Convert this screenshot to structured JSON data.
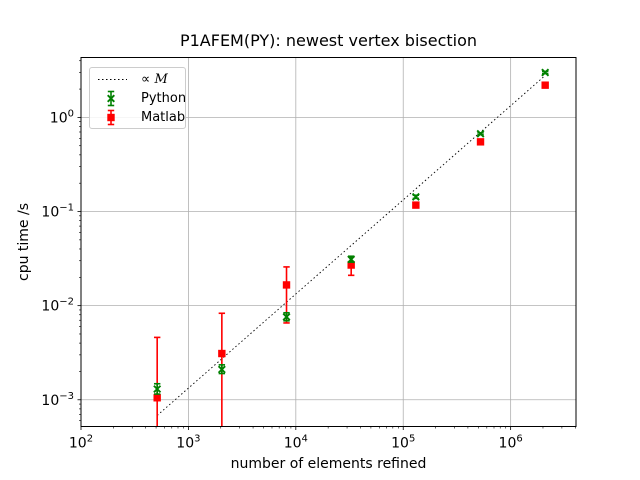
{
  "figure": {
    "title": "P1AFEM(PY): newest vertex bisection",
    "xlabel": "number of elements refined",
    "ylabel": "cpu time /s"
  },
  "legend": {
    "items": [
      {
        "label_prefix": "∝",
        "label_var": "M",
        "type": "dashed-line",
        "color": "#000000"
      },
      {
        "label": "Python",
        "type": "errorbar-x",
        "color": "#008000"
      },
      {
        "label": "Matlab",
        "type": "errorbar-square",
        "color": "#ff0000"
      }
    ]
  },
  "chart_data": {
    "type": "scatter",
    "x_scale": "log",
    "y_scale": "log",
    "xlim": [
      100,
      4060000
    ],
    "ylim": [
      0.00052,
      4.33
    ],
    "x_ticks_exp": [
      2,
      3,
      4,
      5,
      6
    ],
    "y_ticks_exp": [
      0,
      -1,
      -2,
      -3
    ],
    "grid": true,
    "grid_color": "#b0b0b0",
    "x": [
      512,
      2048,
      8192,
      32768,
      131072,
      524288,
      2097152
    ],
    "series": [
      {
        "name": "Python",
        "color": "#008000",
        "marker": "x",
        "values": [
          0.0013,
          0.0021,
          0.0076,
          0.031,
          0.143,
          0.67,
          3.0
        ],
        "err_lo": [
          0.00115,
          0.0019,
          0.0069,
          0.029,
          0.138,
          0.655,
          2.92
        ],
        "err_hi": [
          0.00148,
          0.00235,
          0.0084,
          0.0335,
          0.149,
          0.685,
          3.08
        ]
      },
      {
        "name": "Matlab",
        "color": "#ff0000",
        "marker": "square",
        "values": [
          0.00105,
          0.0031,
          0.0166,
          0.027,
          0.117,
          0.55,
          2.2
        ],
        "err_lo": [
          0.0002,
          0.0003,
          0.00655,
          0.021,
          0.11,
          0.542,
          2.16
        ],
        "err_hi": [
          0.0046,
          0.0083,
          0.0258,
          0.033,
          0.1245,
          0.558,
          2.24
        ]
      }
    ],
    "reference_line": {
      "label": "∝ M",
      "style": "dotted",
      "color": "#000000",
      "coefficient": 1.33e-06,
      "x_start": 512,
      "x_end": 2097152
    }
  }
}
